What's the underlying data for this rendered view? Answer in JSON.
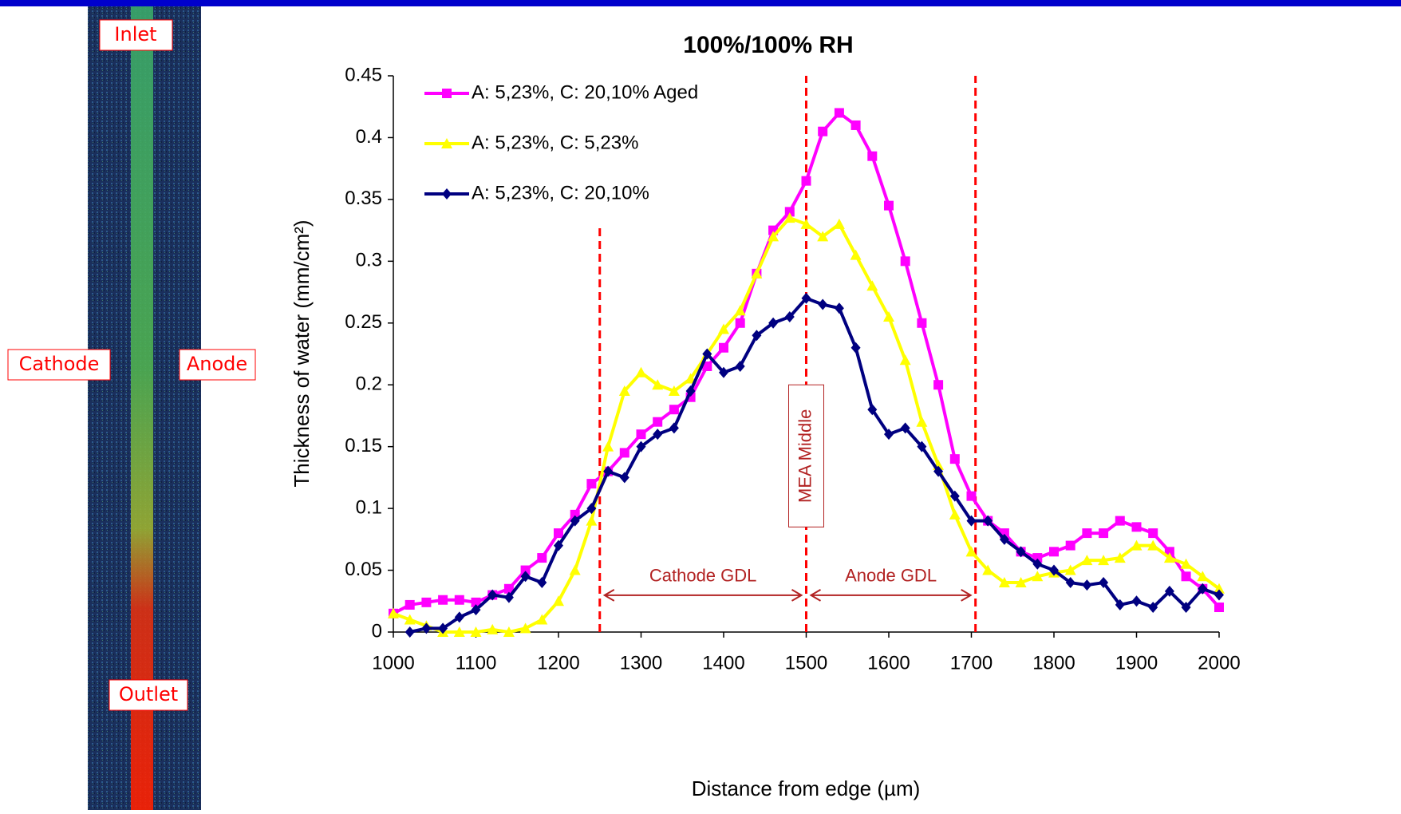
{
  "image_panel": {
    "labels": {
      "top": "Inlet",
      "left": "Cathode",
      "right": "Anode",
      "bottom": "Outlet"
    }
  },
  "chart_data": {
    "type": "line",
    "title": "100%/100% RH",
    "x_label": "Distance from edge (µm)",
    "y_label": "Thickness of water (mm/cm²)",
    "x": [
      1000,
      1020,
      1040,
      1060,
      1080,
      1100,
      1120,
      1140,
      1160,
      1180,
      1200,
      1220,
      1240,
      1260,
      1280,
      1300,
      1320,
      1340,
      1360,
      1380,
      1400,
      1420,
      1440,
      1460,
      1480,
      1500,
      1520,
      1540,
      1560,
      1580,
      1600,
      1620,
      1640,
      1660,
      1680,
      1700,
      1720,
      1740,
      1760,
      1780,
      1800,
      1820,
      1840,
      1860,
      1880,
      1900,
      1920,
      1940,
      1960,
      1980,
      2000
    ],
    "series": [
      {
        "name": "A: 5,23%, C: 20,10% Aged",
        "color": "#ff00ff",
        "marker": "square",
        "values": [
          0.015,
          0.022,
          0.024,
          0.026,
          0.026,
          0.024,
          0.03,
          0.035,
          0.05,
          0.06,
          0.08,
          0.095,
          0.12,
          0.13,
          0.145,
          0.16,
          0.17,
          0.18,
          0.19,
          0.215,
          0.23,
          0.25,
          0.29,
          0.325,
          0.34,
          0.365,
          0.405,
          0.42,
          0.41,
          0.385,
          0.345,
          0.3,
          0.25,
          0.2,
          0.14,
          0.11,
          0.09,
          0.08,
          0.065,
          0.06,
          0.065,
          0.07,
          0.08,
          0.08,
          0.09,
          0.085,
          0.08,
          0.065,
          0.045,
          0.035,
          0.02
        ]
      },
      {
        "name": "A: 5,23%, C: 5,23%",
        "color": "#ffff00",
        "marker": "triangle",
        "values": [
          0.015,
          0.01,
          0.005,
          0,
          0,
          0,
          0.002,
          0,
          0.003,
          0.01,
          0.025,
          0.05,
          0.09,
          0.15,
          0.195,
          0.21,
          0.2,
          0.195,
          0.205,
          0.225,
          0.245,
          0.26,
          0.29,
          0.32,
          0.335,
          0.33,
          0.32,
          0.33,
          0.305,
          0.28,
          0.255,
          0.22,
          0.17,
          0.135,
          0.095,
          0.065,
          0.05,
          0.04,
          0.04,
          0.045,
          0.048,
          0.05,
          0.058,
          0.058,
          0.06,
          0.07,
          0.07,
          0.06,
          0.055,
          0.045,
          0.035
        ]
      },
      {
        "name": "A: 5,23%, C: 20,10%",
        "color": "#000080",
        "marker": "diamond",
        "values": [
          null,
          0,
          0.003,
          0.003,
          0.012,
          0.018,
          0.03,
          0.028,
          0.045,
          0.04,
          0.07,
          0.09,
          0.1,
          0.13,
          0.125,
          0.15,
          0.16,
          0.165,
          0.195,
          0.225,
          0.21,
          0.215,
          0.24,
          0.25,
          0.255,
          0.27,
          0.265,
          0.262,
          0.23,
          0.18,
          0.16,
          0.165,
          0.15,
          0.13,
          0.11,
          0.09,
          0.09,
          0.075,
          0.065,
          0.055,
          0.05,
          0.04,
          0.038,
          0.04,
          0.022,
          0.025,
          0.02,
          0.033,
          0.02,
          0.035,
          0.03
        ]
      }
    ],
    "xlim": [
      1000,
      2000
    ],
    "ylim": [
      0,
      0.45
    ],
    "xticks": [
      1000,
      1100,
      1200,
      1300,
      1400,
      1500,
      1600,
      1700,
      1800,
      1900,
      2000
    ],
    "yticks": [
      0,
      0.05,
      0.1,
      0.15,
      0.2,
      0.25,
      0.3,
      0.35,
      0.4,
      0.45
    ],
    "legend": "upper left",
    "reference_lines": [
      {
        "x": 1250,
        "y_to": 0.33
      },
      {
        "x": 1500,
        "y_to": 0.45
      },
      {
        "x": 1705,
        "y_to": 0.45
      }
    ],
    "annotations": [
      {
        "text": "Cathode GDL",
        "x_from": 1250,
        "x_to": 1500,
        "y": 0.033
      },
      {
        "text": "Anode GDL",
        "x_from": 1500,
        "x_to": 1705,
        "y": 0.033
      },
      {
        "text": "MEA Middle",
        "x": 1500,
        "y_from": 0.085,
        "y_to": 0.2
      }
    ]
  }
}
